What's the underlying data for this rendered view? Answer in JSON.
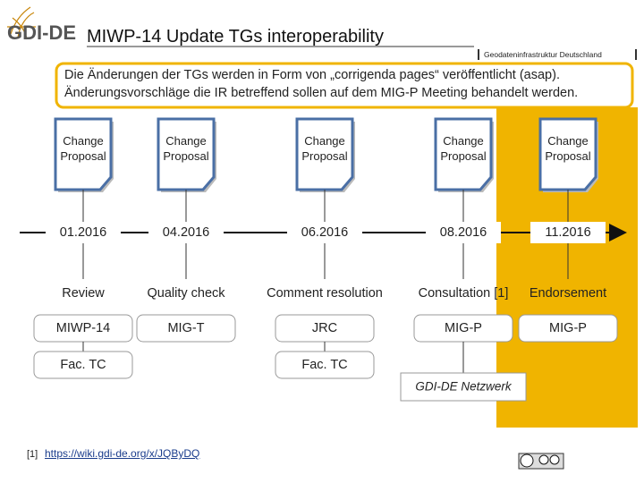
{
  "header": {
    "logo": "GDI-DE",
    "title": "MIWP-14 Update TGs interoperability",
    "subtitle": "Geodateninfrastruktur Deutschland"
  },
  "note": {
    "lines": [
      "Die Änderungen der TGs werden in Form von „corrigenda pages“ veröffentlicht (asap).",
      "Änderungsvorschläge die IR betreffend sollen auf dem MIG-P Meeting behandelt werden."
    ]
  },
  "columns": [
    {
      "proposal": "Change Proposal",
      "date": "01.2016",
      "activity": "Review",
      "bodies": [
        "MIWP-14",
        "Fac. TC"
      ]
    },
    {
      "proposal": "Change Proposal",
      "date": "04.2016",
      "activity": "Quality check",
      "bodies": [
        "MIG-T"
      ]
    },
    {
      "proposal": "Change Proposal",
      "date": "06.2016",
      "activity": "Comment resolution",
      "bodies": [
        "JRC",
        "Fac. TC"
      ]
    },
    {
      "proposal": "Change Proposal",
      "date": "08.2016",
      "activity": "Consultation [1]",
      "bodies": [
        "MIG-P"
      ]
    },
    {
      "proposal": "Change Proposal",
      "date": "11.2016",
      "activity": "Endorsement",
      "bodies": [
        "MIG-P"
      ]
    }
  ],
  "network": {
    "label": "GDI-DE Netzwerk"
  },
  "footnote": {
    "marker": "[1]",
    "link": "https://wiki.gdi-de.org/x/JQByDQ"
  }
}
